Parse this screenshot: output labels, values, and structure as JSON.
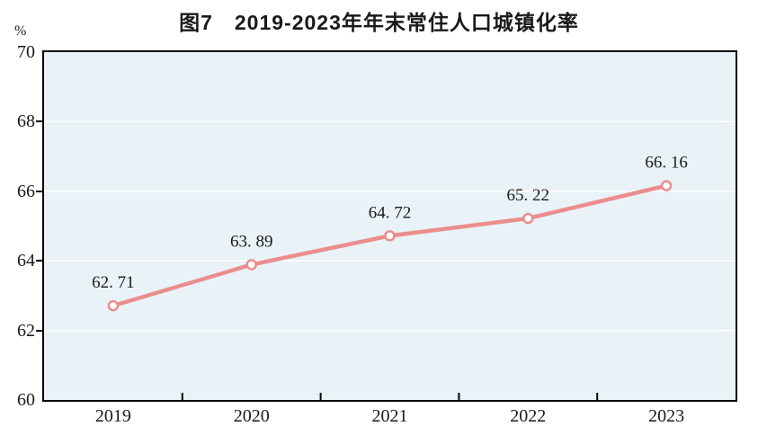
{
  "page": {
    "background": "#ffffff"
  },
  "colors": {
    "line": "#eb8d8d",
    "marker_fill": "#ffffff",
    "plot_background": "#e9f2f7",
    "gridline": "#ffffff",
    "axis_border": "#000000",
    "text": "#1a1a1a"
  },
  "chart_data": {
    "type": "line",
    "title": "图7　2019-2023年年末常住人口城镇化率",
    "categories": [
      "2019",
      "2020",
      "2021",
      "2022",
      "2023"
    ],
    "values": [
      62.71,
      63.89,
      64.72,
      65.22,
      66.16
    ],
    "point_labels": [
      "62. 71",
      "63. 89",
      "64. 72",
      "65. 22",
      "66. 16"
    ],
    "series_name": "年末常住人口城镇化率",
    "xlabel": "",
    "ylabel": "%",
    "ylim": [
      60,
      70
    ],
    "yticks": [
      60,
      62,
      64,
      66,
      68,
      70
    ],
    "grid": true,
    "legend": "none"
  }
}
